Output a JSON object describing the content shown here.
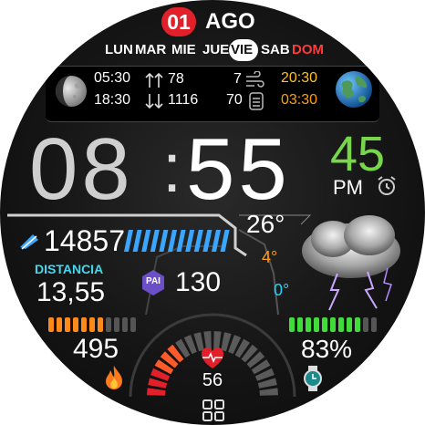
{
  "date": {
    "day": "01",
    "month": "AGO"
  },
  "weekdays": [
    {
      "label": "LUN",
      "active": false,
      "weekend": false
    },
    {
      "label": "MAR",
      "active": false,
      "weekend": false
    },
    {
      "label": "MIE",
      "active": false,
      "weekend": false
    },
    {
      "label": "JUE",
      "active": false,
      "weekend": false
    },
    {
      "label": "VIE",
      "active": true,
      "weekend": false
    },
    {
      "label": "SAB",
      "active": false,
      "weekend": false
    },
    {
      "label": "DOM",
      "active": false,
      "weekend": true
    }
  ],
  "info": {
    "moonrise": "05:30",
    "moonset": "18:30",
    "tide_high": "78",
    "tide_low": "1116",
    "wind": "7",
    "pressure": "70",
    "sunrise": "20:30",
    "sunset": "03:30"
  },
  "time": {
    "hours": "08",
    "separator": ":",
    "minutes": "55",
    "seconds": "45",
    "ampm": "PM"
  },
  "steps": {
    "value": "14857",
    "progress": 1.0
  },
  "distance": {
    "label": "DISTANCIA",
    "value": "13,55"
  },
  "pai": {
    "icon_text": "PAI",
    "value": "130"
  },
  "weather": {
    "temp": "26°",
    "high": "4°",
    "low": "0°",
    "condition": "thunderstorm"
  },
  "calories": {
    "value": "495",
    "progress": 0.64
  },
  "battery": {
    "value": "83%",
    "progress": 0.83
  },
  "heart": {
    "value": "56"
  },
  "colors": {
    "accent_red": "#e2202a",
    "steps_blue": "#3aa6ff",
    "seconds_green": "#77d64a",
    "sun_orange": "#ffaa00",
    "calorie_orange": "#ff8a1a",
    "battery_green": "#3fdc3a",
    "distance_cyan": "#42d9f0"
  }
}
